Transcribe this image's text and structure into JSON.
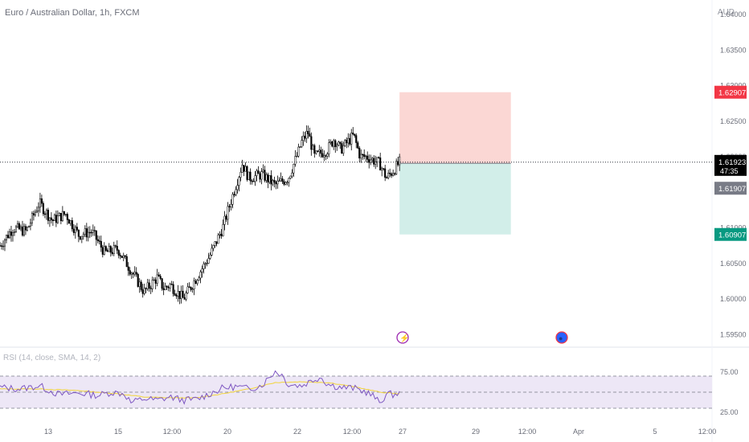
{
  "header": {
    "symbol_title": "Euro / Australian Dollar, 1h, FXCM",
    "currency": "AUD"
  },
  "colors": {
    "candle": "#000000",
    "stop_zone": "#fbd7d4",
    "target_zone": "#d2eee9",
    "stop_badge": "#f23645",
    "target_badge": "#089981",
    "entry_badge": "#787b86",
    "price_badge": "#000000",
    "rsi_line": "#7e57c2",
    "rsi_sma": "#f2d438",
    "rsi_band": "#ede7f6"
  },
  "chart_data": [
    {
      "type": "candlestick",
      "title": "Euro / Australian Dollar, 1h, FXCM",
      "y_tick_labels": [
        "1.59500",
        "1.60000",
        "1.60500",
        "1.61000",
        "1.62000",
        "1.62500",
        "1.63000",
        "1.63500",
        "1.64000"
      ],
      "ylim": [
        1.5944,
        1.6425
      ],
      "x_ticks": [
        "13",
        "15",
        "12:00",
        "20",
        "22",
        "12:00",
        "27",
        "29",
        "12:00",
        "Apr",
        "5",
        "12:00"
      ],
      "series_path": [
        [
          0,
          1.6075
        ],
        [
          2,
          1.61
        ],
        [
          4,
          1.6095
        ],
        [
          6,
          1.6135
        ],
        [
          8,
          1.611
        ],
        [
          10,
          1.612
        ],
        [
          12,
          1.609
        ],
        [
          14,
          1.6095
        ],
        [
          16,
          1.6065
        ],
        [
          18,
          1.607
        ],
        [
          20,
          1.604
        ],
        [
          22,
          1.601
        ],
        [
          24,
          1.603
        ],
        [
          25,
          1.6015
        ],
        [
          26,
          1.602
        ],
        [
          28,
          1.6
        ],
        [
          30,
          1.603
        ],
        [
          32,
          1.606
        ],
        [
          34,
          1.61
        ],
        [
          36,
          1.616
        ],
        [
          37,
          1.619
        ],
        [
          38,
          1.617
        ],
        [
          40,
          1.6175
        ],
        [
          42,
          1.616
        ],
        [
          44,
          1.617
        ],
        [
          45.5,
          1.6205
        ],
        [
          46,
          1.622
        ],
        [
          47,
          1.6235
        ],
        [
          48,
          1.62
        ],
        [
          50,
          1.621
        ],
        [
          51,
          1.6225
        ],
        [
          52,
          1.621
        ],
        [
          54,
          1.623
        ],
        [
          55,
          1.62
        ],
        [
          56,
          1.62
        ],
        [
          58,
          1.619
        ],
        [
          59,
          1.617
        ],
        [
          60,
          1.618
        ],
        [
          61,
          1.6192
        ]
      ],
      "last_price": 1.61923,
      "countdown": "47:35",
      "position_tool": {
        "stop_price": 1.62907,
        "entry_price": 1.61907,
        "target_price": 1.60907,
        "span_x": [
          61,
          78
        ]
      },
      "event_markers": [
        "⚡",
        "●"
      ]
    },
    {
      "type": "line",
      "title": "RSI (14, close, SMA, 14, 2)",
      "y_tick_labels": [
        "75.00",
        "25.00"
      ],
      "ylim": [
        20,
        85
      ],
      "levels": [
        70,
        50,
        30
      ],
      "series": [
        {
          "name": "RSI",
          "points": [
            [
              0,
              56
            ],
            [
              3,
              54
            ],
            [
              6,
              58
            ],
            [
              9,
              47
            ],
            [
              12,
              49
            ],
            [
              15,
              46
            ],
            [
              17,
              50
            ],
            [
              19,
              48
            ],
            [
              20,
              37
            ],
            [
              22,
              42
            ],
            [
              24,
              40
            ],
            [
              26,
              44
            ],
            [
              28,
              40
            ],
            [
              30,
              41
            ],
            [
              32,
              48
            ],
            [
              34,
              55
            ],
            [
              36,
              57
            ],
            [
              38,
              54
            ],
            [
              40,
              59
            ],
            [
              42,
              76
            ],
            [
              43,
              72
            ],
            [
              44,
              60
            ],
            [
              46,
              58
            ],
            [
              48,
              66
            ],
            [
              49,
              69
            ],
            [
              50,
              60
            ],
            [
              52,
              56
            ],
            [
              54,
              55
            ],
            [
              56,
              50
            ],
            [
              57,
              45
            ],
            [
              58,
              36
            ],
            [
              59,
              48
            ],
            [
              60,
              47
            ],
            [
              61,
              49
            ]
          ]
        },
        {
          "name": "RSI-based MA",
          "points": [
            [
              0,
              54
            ],
            [
              6,
              54
            ],
            [
              12,
              52
            ],
            [
              18,
              48
            ],
            [
              22,
              44
            ],
            [
              26,
              43
            ],
            [
              30,
              43
            ],
            [
              34,
              48
            ],
            [
              38,
              54
            ],
            [
              42,
              62
            ],
            [
              46,
              63
            ],
            [
              50,
              62
            ],
            [
              54,
              57
            ],
            [
              58,
              50
            ],
            [
              61,
              48
            ]
          ]
        }
      ]
    }
  ]
}
